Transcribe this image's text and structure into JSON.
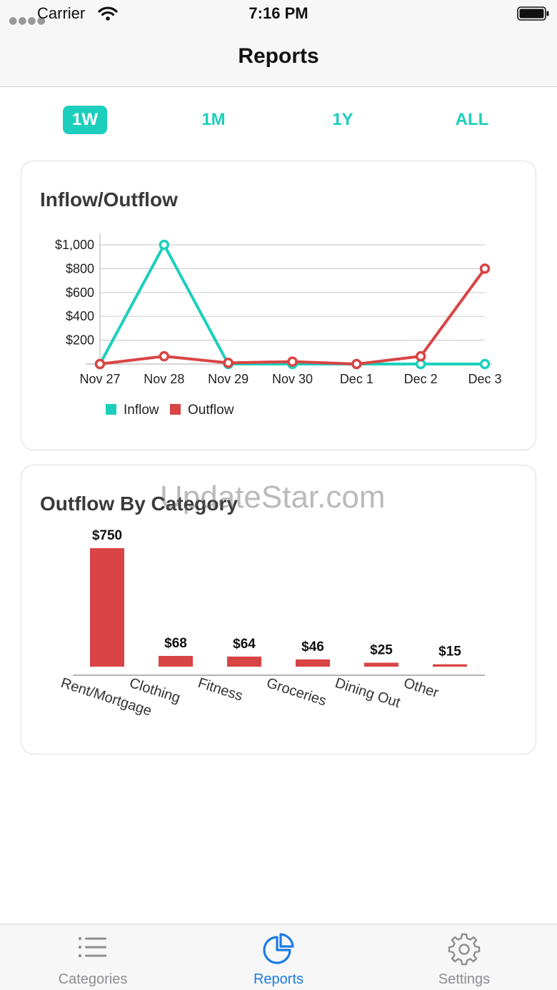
{
  "status_bar": {
    "carrier": "Carrier",
    "time": "7:16 PM",
    "signal_icon": "signal-dots-icon",
    "wifi_icon": "wifi-icon",
    "battery_icon": "battery-icon"
  },
  "nav": {
    "title": "Reports"
  },
  "range_tabs": [
    {
      "label": "1W",
      "active": true
    },
    {
      "label": "1M",
      "active": false
    },
    {
      "label": "1Y",
      "active": false
    },
    {
      "label": "ALL",
      "active": false
    }
  ],
  "inflow_card": {
    "title": "Inflow/Outflow"
  },
  "category_card": {
    "title": "Outflow By Category"
  },
  "watermark": "UpdateStar.com",
  "tab_bar": [
    {
      "label": "Categories",
      "icon": "list-icon",
      "active": false
    },
    {
      "label": "Reports",
      "icon": "pie-chart-icon",
      "active": true
    },
    {
      "label": "Settings",
      "icon": "gear-icon",
      "active": false
    }
  ],
  "colors": {
    "accent": "#1ccfbd",
    "inflow": "#1ccfbd",
    "outflow": "#d94444",
    "tab_active": "#1a7ce6",
    "tab_inactive": "#8e8e93"
  },
  "chart_data": [
    {
      "type": "line",
      "title": "Inflow/Outflow",
      "x": [
        "Nov 27",
        "Nov 28",
        "Nov 29",
        "Nov 30",
        "Dec 1",
        "Dec 2",
        "Dec 3"
      ],
      "series": [
        {
          "name": "Inflow",
          "color": "#1ccfbd",
          "values": [
            0,
            1000,
            0,
            0,
            0,
            0,
            0
          ]
        },
        {
          "name": "Outflow",
          "color": "#d94444",
          "values": [
            0,
            65,
            10,
            20,
            0,
            65,
            800
          ]
        }
      ],
      "y_ticks": [
        "$1,000",
        "$800",
        "$600",
        "$400",
        "$200"
      ],
      "ylim": [
        0,
        1000
      ],
      "grid": true,
      "legend": "bottom-left"
    },
    {
      "type": "bar",
      "title": "Outflow By Category",
      "categories": [
        "Rent/Mortgage",
        "Clothing",
        "Fitness",
        "Groceries",
        "Dining Out",
        "Other"
      ],
      "values": [
        750,
        68,
        64,
        46,
        25,
        15
      ],
      "value_labels": [
        "$750",
        "$68",
        "$64",
        "$46",
        "$25",
        "$15"
      ],
      "color": "#d94444"
    }
  ]
}
